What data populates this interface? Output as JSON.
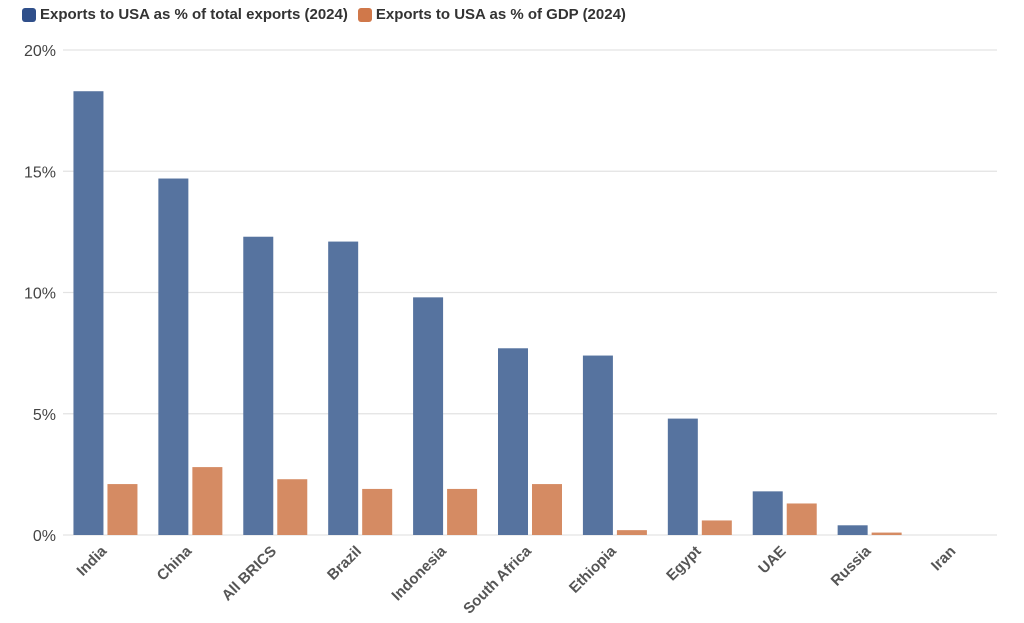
{
  "legend": {
    "series0": "Exports to USA as % of total exports (2024)",
    "series1": "Exports to USA as % of GDP (2024)"
  },
  "colors": {
    "series0": "#56739f",
    "series1": "#d58b63",
    "grid": "#e3e3e3"
  },
  "chart_data": {
    "type": "bar",
    "categories": [
      "India",
      "China",
      "All BRICS",
      "Brazil",
      "Indonesia",
      "South Africa",
      "Ethiopia",
      "Egypt",
      "UAE",
      "Russia",
      "Iran"
    ],
    "series": [
      {
        "name": "Exports to USA as % of total exports (2024)",
        "values": [
          18.3,
          14.7,
          12.3,
          12.1,
          9.8,
          7.7,
          7.4,
          4.8,
          1.8,
          0.4,
          0
        ]
      },
      {
        "name": "Exports to USA as % of GDP (2024)",
        "values": [
          2.1,
          2.8,
          2.3,
          1.9,
          1.9,
          2.1,
          0.2,
          0.6,
          1.3,
          0.1,
          0
        ]
      }
    ],
    "ylim": [
      0,
      20
    ],
    "yticks": [
      0,
      5,
      10,
      15,
      20
    ],
    "ytick_labels": [
      "0%",
      "5%",
      "10%",
      "15%",
      "20%"
    ],
    "grid": true,
    "legend_position": "top-left"
  }
}
